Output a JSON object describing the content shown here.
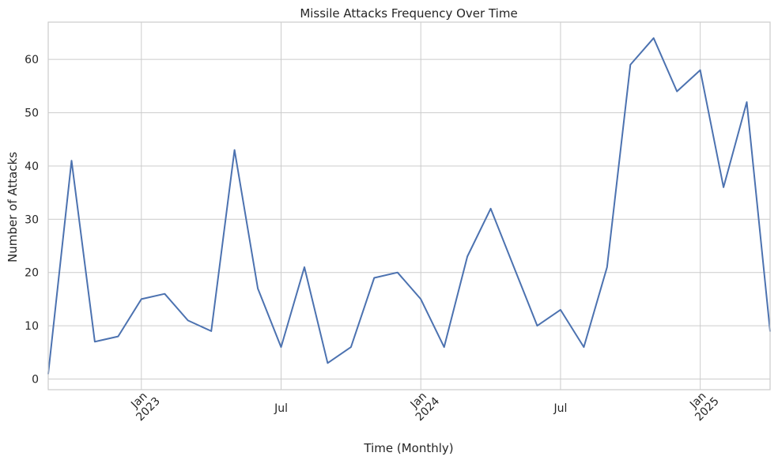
{
  "chart_data": {
    "type": "line",
    "title": "Missile Attacks Frequency Over Time",
    "xlabel": "Time (Monthly)",
    "ylabel": "Number of Attacks",
    "x_range": [
      "2022-09",
      "2025-04"
    ],
    "ylim": [
      -2,
      67
    ],
    "grid": true,
    "y_ticks": [
      0,
      10,
      20,
      30,
      40,
      50,
      60
    ],
    "x_ticks": [
      {
        "month": "2023-01",
        "label": "Jan",
        "sublabel": "2023"
      },
      {
        "month": "2023-07",
        "label": "Jul",
        "sublabel": ""
      },
      {
        "month": "2024-01",
        "label": "Jan",
        "sublabel": "2024"
      },
      {
        "month": "2024-07",
        "label": "Jul",
        "sublabel": ""
      },
      {
        "month": "2025-01",
        "label": "Jan",
        "sublabel": "2025"
      }
    ],
    "line_color": "#4c72b0",
    "grid_color": "#cccccc",
    "series": [
      {
        "x": [
          "2022-09",
          "2022-10",
          "2022-11",
          "2022-12",
          "2023-01",
          "2023-02",
          "2023-03",
          "2023-04",
          "2023-05",
          "2023-06",
          "2023-07",
          "2023-08",
          "2023-09",
          "2023-10",
          "2023-11",
          "2023-12",
          "2024-01",
          "2024-02",
          "2024-03",
          "2024-04",
          "2024-05",
          "2024-06",
          "2024-07",
          "2024-08",
          "2024-09",
          "2024-10",
          "2024-11",
          "2024-12",
          "2025-01",
          "2025-02",
          "2025-03",
          "2025-04"
        ],
        "values": [
          1,
          41,
          7,
          8,
          15,
          16,
          11,
          9,
          43,
          17,
          6,
          21,
          3,
          6,
          19,
          20,
          15,
          6,
          23,
          32,
          21,
          10,
          13,
          6,
          21,
          59,
          64,
          54,
          58,
          36,
          52,
          9
        ]
      }
    ]
  }
}
